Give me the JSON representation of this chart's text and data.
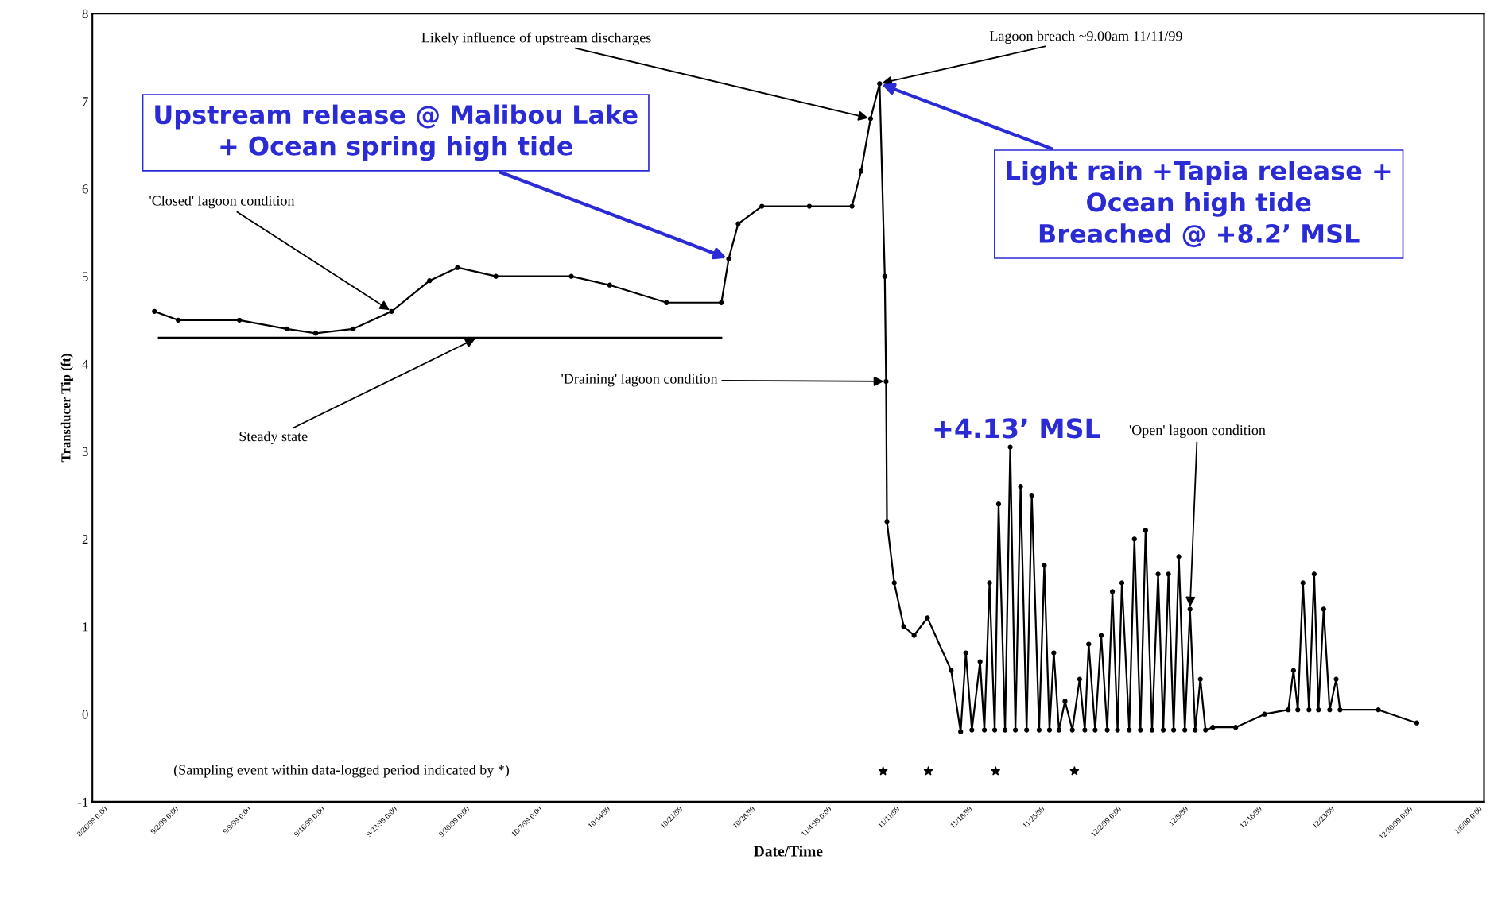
{
  "chart_data": {
    "type": "line",
    "xlabel": "Date/Time",
    "ylabel": "Transducer Tip (ft)",
    "xlim": [
      "1999-08-26",
      "2000-01-07T12:00"
    ],
    "ylim": [
      -1,
      8
    ],
    "xticks": [
      {
        "value": "1999-08-26",
        "label": "8/26/99 0:00"
      },
      {
        "value": "1999-09-02",
        "label": "9/2/99 0:00"
      },
      {
        "value": "1999-09-09",
        "label": "9/9/99 0:00"
      },
      {
        "value": "1999-09-16",
        "label": "9/16/99 0:00"
      },
      {
        "value": "1999-09-23",
        "label": "9/23/99 0:00"
      },
      {
        "value": "1999-09-30",
        "label": "9/30/99 0:00"
      },
      {
        "value": "1999-10-07",
        "label": "10/7/99 0:00"
      },
      {
        "value": "1999-10-14",
        "label": "10/14/99"
      },
      {
        "value": "1999-10-21",
        "label": "10/21/99"
      },
      {
        "value": "1999-10-28",
        "label": "10/28/99"
      },
      {
        "value": "1999-11-04",
        "label": "11/4/99 0:00"
      },
      {
        "value": "1999-11-11",
        "label": "11/11/99"
      },
      {
        "value": "1999-11-18",
        "label": "11/18/99"
      },
      {
        "value": "1999-11-25",
        "label": "11/25/99"
      },
      {
        "value": "1999-12-02",
        "label": "12/2/99 0:00"
      },
      {
        "value": "1999-12-09",
        "label": "12/9/99"
      },
      {
        "value": "1999-12-16",
        "label": "12/16/99"
      },
      {
        "value": "1999-12-23",
        "label": "12/23/99"
      },
      {
        "value": "1999-12-30",
        "label": "12/30/99 0:00"
      },
      {
        "value": "2000-01-06",
        "label": "1/6/00 0:00"
      }
    ],
    "yticks": [
      -1,
      0,
      1,
      2,
      3,
      4,
      5,
      6,
      7,
      8
    ],
    "grid": false,
    "series": [
      {
        "color": "#000000",
        "marker": "circle",
        "x": [
          "1999-09-01",
          "1999-09-03T07:00",
          "1999-09-09T05:00",
          "1999-09-13T19:00",
          "1999-09-16T14:00",
          "1999-09-20T05:00",
          "1999-09-23T22:00",
          "1999-09-27T14:00",
          "1999-09-30T07:00",
          "1999-10-04",
          "1999-10-11T07:00",
          "1999-10-15",
          "1999-10-20T12:00",
          "1999-10-25T19:00",
          "1999-10-26T12:00",
          "1999-10-27T10:00",
          "1999-10-29T17:00",
          "1999-11-03T07:00",
          "1999-11-07T10:00",
          "1999-11-08T07:00",
          "1999-11-09T05:00",
          "1999-11-10T02:00",
          "1999-11-10T14:00",
          "1999-11-10T17:00",
          "1999-11-10T19:00",
          "1999-11-11T12:00",
          "1999-11-12T10:00",
          "1999-11-13T10:00",
          "1999-11-14T17:00",
          "1999-11-17",
          "1999-11-17T22:00",
          "1999-11-18T10:00",
          "1999-11-19",
          "1999-11-19T19:00",
          "1999-11-20T05:00",
          "1999-11-20T17:00",
          "1999-11-21T05:00",
          "1999-11-21T14:00",
          "1999-11-22T05:00",
          "1999-11-22T17:00",
          "1999-11-23T05:00",
          "1999-11-23T17:00",
          "1999-11-24T07:00",
          "1999-11-24T19:00",
          "1999-11-25T12:00",
          "1999-11-26",
          "1999-11-26T12:00",
          "1999-11-26T22:00",
          "1999-11-27T10:00",
          "1999-11-28",
          "1999-11-28T17:00",
          "1999-11-29T10:00",
          "1999-11-29T22:00",
          "1999-11-30T07:00",
          "1999-11-30T22:00",
          "1999-12-01T12:00",
          "1999-12-02T02:00",
          "1999-12-02T14:00",
          "1999-12-03T02:00",
          "1999-12-03T12:00",
          "1999-12-04T05:00",
          "1999-12-04T17:00",
          "1999-12-05T07:00",
          "1999-12-05T19:00",
          "1999-12-06T10:00",
          "1999-12-07",
          "1999-12-07T12:00",
          "1999-12-08",
          "1999-12-08T12:00",
          "1999-12-09",
          "1999-12-09T14:00",
          "1999-12-10T02:00",
          "1999-12-10T14:00",
          "1999-12-11T02:00",
          "1999-12-11T14:00",
          "1999-12-12T07:00",
          "1999-12-14T12:00",
          "1999-12-17T07:00",
          "1999-12-19T14:00",
          "1999-12-20T02:00",
          "1999-12-20T12:00",
          "1999-12-21",
          "1999-12-21T14:00",
          "1999-12-22T02:00",
          "1999-12-22T12:00",
          "1999-12-23",
          "1999-12-23T14:00",
          "1999-12-24T05:00",
          "1999-12-24T14:00",
          "1999-12-28T07:00",
          "2000-01-01"
        ],
        "values": [
          4.6,
          4.5,
          4.5,
          4.4,
          4.35,
          4.4,
          4.6,
          4.95,
          5.1,
          5.0,
          5.0,
          4.9,
          4.7,
          4.7,
          5.2,
          5.6,
          5.8,
          5.8,
          5.8,
          6.2,
          6.8,
          7.2,
          5.0,
          3.8,
          2.2,
          1.5,
          1.0,
          0.9,
          1.1,
          0.5,
          -0.2,
          0.7,
          -0.18,
          0.6,
          -0.18,
          1.5,
          -0.18,
          2.4,
          -0.18,
          3.05,
          -0.18,
          2.6,
          -0.18,
          2.5,
          -0.18,
          1.7,
          -0.18,
          0.7,
          -0.18,
          0.15,
          -0.18,
          0.4,
          -0.18,
          0.8,
          -0.18,
          0.9,
          -0.18,
          1.4,
          -0.18,
          1.5,
          -0.18,
          2.0,
          -0.18,
          2.1,
          -0.18,
          1.6,
          -0.18,
          1.6,
          -0.18,
          1.8,
          -0.18,
          1.2,
          -0.18,
          0.4,
          -0.18,
          -0.15,
          -0.15,
          0.0,
          0.05,
          0.5,
          0.05,
          1.5,
          0.05,
          1.6,
          0.05,
          1.2,
          0.05,
          0.4,
          0.05,
          0.05,
          -0.1
        ]
      },
      {
        "type": "line",
        "color": "#000000",
        "marker": "none",
        "x": [
          "1999-09-01T10:00",
          "1999-10-25T19:00"
        ],
        "values": [
          4.3,
          4.3
        ]
      },
      {
        "type": "scatter",
        "color": "#000000",
        "marker": "star",
        "x": [
          "1999-11-10T10:00",
          "1999-11-14T19:00",
          "1999-11-21T07:00",
          "1999-11-28T22:00"
        ],
        "values": [
          -0.65,
          -0.65,
          -0.65,
          -0.65
        ]
      }
    ],
    "annotations": [
      {
        "text": "Likely influence of upstream discharges",
        "x": "1999-11-09T05:00",
        "y": 6.8
      },
      {
        "text": "Lagoon breach ~9.00am 11/11/99",
        "x": "1999-11-10T02:00",
        "y": 7.2
      },
      {
        "text": "Upstream release @ Malibou Lake\n+ Ocean spring high tide",
        "x": "1999-10-26T12:00",
        "y": 5.2
      },
      {
        "text": "Light rain +Tapia release +\nOcean high tide\nBreached @ +8.2’ MSL",
        "x": "1999-11-10T02:00",
        "y": 7.2
      },
      {
        "text": "'Closed' lagoon condition",
        "x": "1999-09-23T22:00",
        "y": 4.6
      },
      {
        "text": "Steady state",
        "x": "1999-10-02T05:00",
        "y": 4.3
      },
      {
        "text": "'Draining' lagoon condition",
        "x": "1999-11-10T17:00",
        "y": 3.8
      },
      "+4.13’ MSL",
      {
        "text": "'Open' lagoon condition",
        "x": "1999-12-10T02:00",
        "y": 1.2
      },
      "(Sampling event within data-logged period indicated by *)"
    ]
  }
}
